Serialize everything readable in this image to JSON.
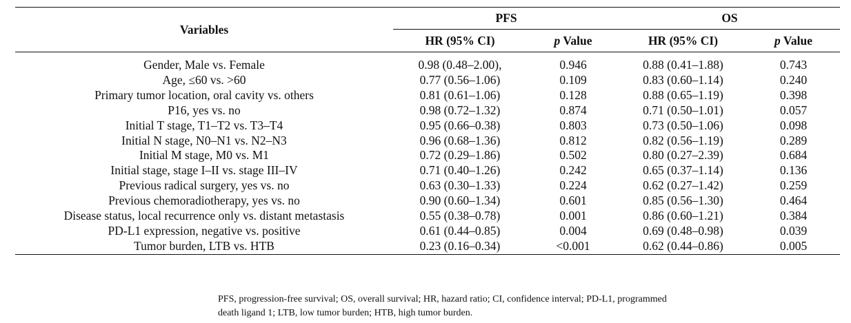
{
  "table": {
    "headers": {
      "variables": "Variables",
      "group1": "PFS",
      "group2": "OS",
      "hr": "HR (95% CI)",
      "p_italic": "p",
      "p_rest": " Value"
    },
    "rows": [
      {
        "variable": "Gender, Male vs. Female",
        "pfs_hr": "0.98 (0.48–2.00),",
        "pfs_p": "0.946",
        "os_hr": "0.88 (0.41–1.88)",
        "os_p": "0.743"
      },
      {
        "variable": "Age, ≤60 vs. >60",
        "pfs_hr": "0.77 (0.56–1.06)",
        "pfs_p": "0.109",
        "os_hr": "0.83 (0.60–1.14)",
        "os_p": "0.240"
      },
      {
        "variable": "Primary tumor location, oral cavity vs. others",
        "pfs_hr": "0.81 (0.61–1.06)",
        "pfs_p": "0.128",
        "os_hr": "0.88 (0.65–1.19)",
        "os_p": "0.398"
      },
      {
        "variable": "P16, yes vs. no",
        "pfs_hr": "0.98 (0.72–1.32)",
        "pfs_p": "0.874",
        "os_hr": "0.71 (0.50–1.01)",
        "os_p": "0.057"
      },
      {
        "variable": "Initial T stage, T1–T2 vs. T3–T4",
        "pfs_hr": "0.95 (0.66–0.38)",
        "pfs_p": "0.803",
        "os_hr": "0.73 (0.50–1.06)",
        "os_p": "0.098"
      },
      {
        "variable": "Initial N stage, N0–N1 vs. N2–N3",
        "pfs_hr": "0.96 (0.68–1.36)",
        "pfs_p": "0.812",
        "os_hr": "0.82 (0.56–1.19)",
        "os_p": "0.289"
      },
      {
        "variable": "Initial M stage, M0 vs. M1",
        "pfs_hr": "0.72 (0.29–1.86)",
        "pfs_p": "0.502",
        "os_hr": "0.80 (0.27–2.39)",
        "os_p": "0.684"
      },
      {
        "variable": "Initial stage, stage I–II vs. stage III–IV",
        "pfs_hr": "0.71 (0.40–1.26)",
        "pfs_p": "0.242",
        "os_hr": "0.65 (0.37–1.14)",
        "os_p": "0.136"
      },
      {
        "variable": "Previous radical surgery, yes vs. no",
        "pfs_hr": "0.63 (0.30–1.33)",
        "pfs_p": "0.224",
        "os_hr": "0.62 (0.27–1.42)",
        "os_p": "0.259"
      },
      {
        "variable": "Previous chemoradiotherapy, yes vs. no",
        "pfs_hr": "0.90 (0.60–1.34)",
        "pfs_p": "0.601",
        "os_hr": "0.85 (0.56–1.30)",
        "os_p": "0.464"
      },
      {
        "variable": "Disease status, local recurrence only vs. distant metastasis",
        "pfs_hr": "0.55 (0.38–0.78)",
        "pfs_p": "0.001",
        "os_hr": "0.86 (0.60–1.21)",
        "os_p": "0.384"
      },
      {
        "variable": "PD-L1 expression, negative vs. positive",
        "pfs_hr": "0.61 (0.44–0.85)",
        "pfs_p": "0.004",
        "os_hr": "0.69 (0.48–0.98)",
        "os_p": "0.039"
      },
      {
        "variable": "Tumor burden, LTB vs. HTB",
        "pfs_hr": "0.23 (0.16–0.34)",
        "pfs_p": "<0.001",
        "os_hr": "0.62 (0.44–0.86)",
        "os_p": "0.005"
      }
    ]
  },
  "footnote": {
    "line1": "PFS, progression-free survival; OS, overall survival; HR, hazard ratio; CI, confidence interval; PD-L1, programmed",
    "line2": "death ligand 1; LTB, low tumor burden; HTB, high tumor burden."
  }
}
